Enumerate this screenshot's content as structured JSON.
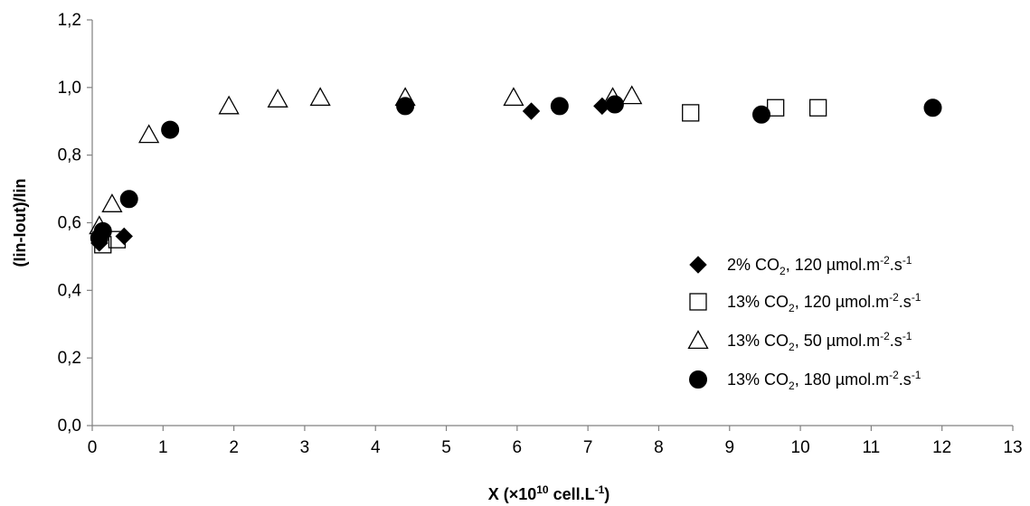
{
  "chart_data": {
    "type": "scatter",
    "title": "",
    "xlabel": {
      "main": "X (×10",
      "sup": "10",
      "tail": " cell.L",
      "tail_sup": "-1",
      "end": ")"
    },
    "ylabel": "(Iin-Iout)/Iin",
    "xlim": [
      0,
      13
    ],
    "ylim": [
      0,
      1.2
    ],
    "x_ticks": [
      "0",
      "1",
      "2",
      "3",
      "4",
      "5",
      "6",
      "7",
      "8",
      "9",
      "10",
      "11",
      "12",
      "13"
    ],
    "y_ticks": [
      "0,0",
      "0,2",
      "0,4",
      "0,6",
      "0,8",
      "1,0",
      "1,2"
    ],
    "grid": false,
    "legend_position": "right",
    "series": [
      {
        "name": "2% CO2, 120 µmol.m-2.s-1",
        "label": {
          "a": "2% CO",
          "sub": "2",
          "b": ", 120 µmol.m",
          "sup1": "-2",
          "c": ".s",
          "sup2": "-1"
        },
        "marker": "diamond-filled",
        "x": [
          0.1,
          0.45,
          6.2,
          6.6,
          7.2
        ],
        "y": [
          0.54,
          0.56,
          0.93,
          0.945,
          0.945
        ]
      },
      {
        "name": "13% CO2, 120 µmol.m-2.s-1",
        "label": {
          "a": "13% CO",
          "sub": "2",
          "b": ", 120 µmol.m",
          "sup1": "-2",
          "c": ".s",
          "sup2": "-1"
        },
        "marker": "square-open",
        "x": [
          0.15,
          0.35,
          8.45,
          9.65,
          10.25
        ],
        "y": [
          0.535,
          0.55,
          0.925,
          0.94,
          0.94
        ]
      },
      {
        "name": "13% CO2, 50 µmol.m-2.s-1",
        "label": {
          "a": "13% CO",
          "sub": "2",
          "b": ", 50 µmol.m",
          "sup1": "-2",
          "c": ".s",
          "sup2": "-1"
        },
        "marker": "triangle-open",
        "x": [
          0.1,
          0.28,
          0.8,
          1.93,
          2.62,
          3.22,
          4.42,
          5.95,
          7.35,
          7.62
        ],
        "y": [
          0.59,
          0.655,
          0.86,
          0.945,
          0.965,
          0.97,
          0.97,
          0.97,
          0.97,
          0.975
        ]
      },
      {
        "name": "13% CO2, 180 µmol.m-2.s-1",
        "label": {
          "a": "13% CO",
          "sub": "2",
          "b": ", 180 µmol.m",
          "sup1": "-2",
          "c": ".s",
          "sup2": "-1"
        },
        "marker": "circle-filled",
        "x": [
          0.15,
          0.1,
          0.52,
          1.1,
          4.42,
          6.6,
          7.38,
          9.45,
          11.87
        ],
        "y": [
          0.575,
          0.555,
          0.67,
          0.875,
          0.945,
          0.945,
          0.95,
          0.92,
          0.94
        ]
      }
    ]
  }
}
